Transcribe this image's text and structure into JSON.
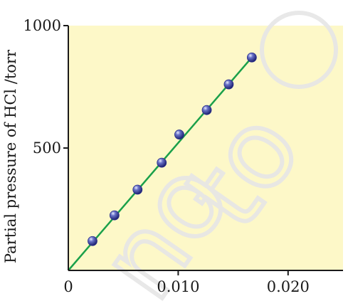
{
  "chart_data": {
    "type": "scatter",
    "title": "",
    "xlabel": "",
    "ylabel": "Partial pressure of HCl /torr",
    "xlim": [
      0,
      0.025
    ],
    "ylim": [
      0,
      1000
    ],
    "x_ticks": [
      {
        "value": 0,
        "label": "0"
      },
      {
        "value": 0.01,
        "label": "0.010"
      },
      {
        "value": 0.02,
        "label": "0.020"
      }
    ],
    "y_ticks": [
      {
        "value": 500,
        "label": "500"
      },
      {
        "value": 1000,
        "label": "1000"
      }
    ],
    "grid": false,
    "legend": "none",
    "plot_background": "#fdf8c8",
    "line_color": "#1aa04a",
    "marker_color": "#2a2f8c",
    "series": [
      {
        "points": [
          {
            "x": 0.0022,
            "y": 120
          },
          {
            "x": 0.0042,
            "y": 225
          },
          {
            "x": 0.0063,
            "y": 330
          },
          {
            "x": 0.0085,
            "y": 440
          },
          {
            "x": 0.0101,
            "y": 555
          },
          {
            "x": 0.0126,
            "y": 655
          },
          {
            "x": 0.0146,
            "y": 760
          },
          {
            "x": 0.0167,
            "y": 870
          }
        ]
      }
    ],
    "fit_line": {
      "x": [
        0,
        0.0167
      ],
      "y": [
        0,
        870
      ]
    }
  }
}
